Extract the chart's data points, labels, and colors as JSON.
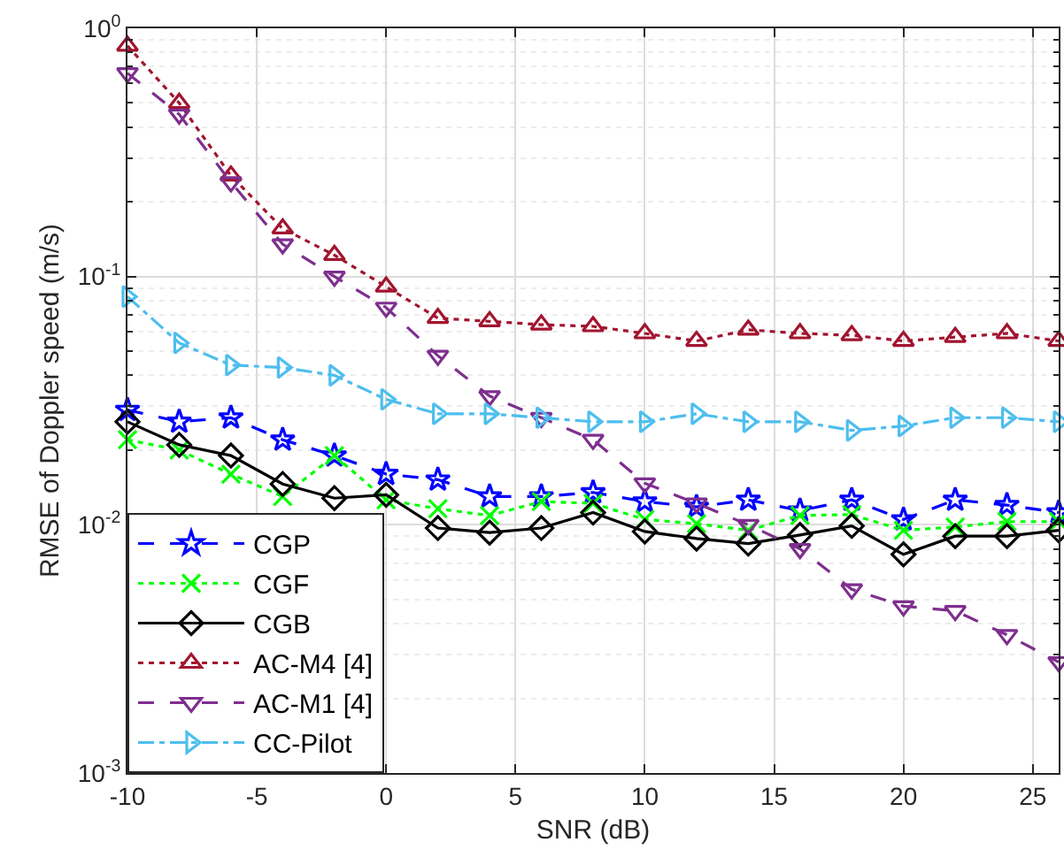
{
  "chart_data": {
    "type": "line",
    "xlabel": "SNR (dB)",
    "ylabel": "RMSE of Doppler speed (m/s)",
    "x": [
      -10,
      -8,
      -6,
      -4,
      -2,
      0,
      2,
      4,
      6,
      8,
      10,
      12,
      14,
      16,
      18,
      20,
      22,
      24,
      26
    ],
    "series": [
      {
        "name": "CGP",
        "color": "#0000ff",
        "marker": "star",
        "line_style": "dashed",
        "values": [
          0.029,
          0.026,
          0.027,
          0.022,
          0.019,
          0.016,
          0.0152,
          0.013,
          0.013,
          0.0135,
          0.0124,
          0.0118,
          0.0126,
          0.0114,
          0.0126,
          0.0105,
          0.0126,
          0.012,
          0.0112
        ]
      },
      {
        "name": "CGF",
        "color": "#00ff00",
        "marker": "cross",
        "line_style": "dotted",
        "values": [
          0.022,
          0.02,
          0.016,
          0.013,
          0.019,
          0.0126,
          0.0116,
          0.0109,
          0.0124,
          0.0122,
          0.0105,
          0.0101,
          0.0095,
          0.0109,
          0.011,
          0.0095,
          0.0098,
          0.0103,
          0.0103
        ]
      },
      {
        "name": "CGB",
        "color": "#000000",
        "marker": "diamond",
        "line_style": "solid",
        "values": [
          0.026,
          0.021,
          0.019,
          0.0146,
          0.0128,
          0.0132,
          0.0097,
          0.0093,
          0.0097,
          0.0112,
          0.0094,
          0.0088,
          0.0084,
          0.0091,
          0.0099,
          0.0076,
          0.009,
          0.009,
          0.0095
        ]
      },
      {
        "name": "AC-M4 [4]",
        "color": "#a2142f",
        "marker": "triangle",
        "line_style": "dotted",
        "values": [
          0.85,
          0.5,
          0.255,
          0.156,
          0.122,
          0.091,
          0.068,
          0.066,
          0.064,
          0.063,
          0.059,
          0.055,
          0.061,
          0.059,
          0.058,
          0.055,
          0.057,
          0.059,
          0.055
        ]
      },
      {
        "name": "AC-M1 [4]",
        "color": "#7e2f8e",
        "marker": "triangle-down",
        "line_style": "dashed",
        "values": [
          0.66,
          0.45,
          0.24,
          0.135,
          0.1,
          0.075,
          0.048,
          0.033,
          0.027,
          0.022,
          0.0147,
          0.0122,
          0.01,
          0.008,
          0.0055,
          0.0047,
          0.0045,
          0.0036,
          0.0028
        ]
      },
      {
        "name": "CC-Pilot",
        "color": "#4dbeee",
        "marker": "triangle-right",
        "line_style": "dashdot",
        "values": [
          0.083,
          0.054,
          0.044,
          0.043,
          0.04,
          0.032,
          0.028,
          0.028,
          0.027,
          0.026,
          0.026,
          0.028,
          0.026,
          0.026,
          0.024,
          0.025,
          0.027,
          0.027,
          0.026
        ]
      }
    ],
    "log": "y",
    "xlim": [
      -10,
      26
    ],
    "xticks": [
      -10,
      -5,
      0,
      5,
      10,
      15,
      20,
      25
    ],
    "ylim": [
      0.001,
      1
    ],
    "yticks": [
      {
        "value": 0.001,
        "label": "10$^{-3}$"
      },
      {
        "value": 0.01,
        "label": "10$^{-2}$"
      },
      {
        "value": 0.1,
        "label": "10$^{-1}$"
      },
      {
        "value": 1,
        "label": "10$^{0}$"
      }
    ],
    "grid": true,
    "legend": "bottom left"
  }
}
